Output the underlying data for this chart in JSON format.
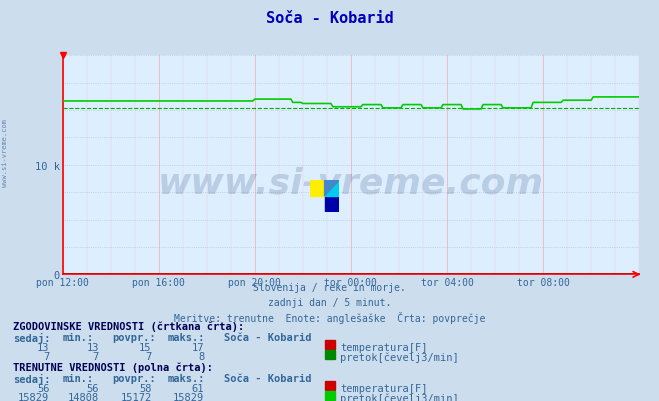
{
  "title": "Soča - Kobarid",
  "bg_color": "#ccdded",
  "plot_bg_color": "#ddeeff",
  "grid_color_v": "#ff9999",
  "grid_color_h": "#aaaacc",
  "axis_color": "#ff0000",
  "title_color": "#0000bb",
  "subtitle_lines": [
    "Slovenija / reke in morje.",
    "zadnji dan / 5 minut.",
    "Meritve: trenutne  Enote: anglešaške  Črta: povprečje"
  ],
  "xlabel_ticks": [
    "pon 12:00",
    "pon 16:00",
    "pon 20:00",
    "tor 00:00",
    "tor 04:00",
    "tor 08:00"
  ],
  "ylabel_ticks": [
    "0",
    "10 k"
  ],
  "ylim": [
    0,
    20000
  ],
  "xlim": [
    0,
    288
  ],
  "ytick_positions": [
    0,
    10000
  ],
  "xtick_positions": [
    0,
    48,
    96,
    144,
    192,
    240
  ],
  "watermark_text": "www.si-vreme.com",
  "watermark_color": "#1a3a6a",
  "watermark_alpha": 0.18,
  "flow_hist_color": "#00aa00",
  "flow_curr_color": "#00cc00",
  "temp_hist_color": "#cc0000",
  "temp_curr_color": "#cc0000",
  "table_text_color": "#336699",
  "table_bold_color": "#000055",
  "legend_items": [
    {
      "label": "ZGODOVINSKE VREDNOSTI (črtkana črta):"
    },
    {
      "cols": [
        "sedaj:",
        "min.:",
        "povpr.:",
        "maks.:",
        "Soča - Kobarid"
      ]
    },
    {
      "vals": [
        "13",
        "13",
        "15",
        "17"
      ],
      "name": "temperatura[F]",
      "color": "#cc0000"
    },
    {
      "vals": [
        "7",
        "7",
        "7",
        "8"
      ],
      "name": "pretok[čevelj3/min]",
      "color": "#008800"
    },
    {
      "label": "TRENUTNE VREDNOSTI (polna črta):"
    },
    {
      "cols": [
        "sedaj:",
        "min.:",
        "povpr.:",
        "maks.:",
        "Soča - Kobarid"
      ]
    },
    {
      "vals": [
        "56",
        "56",
        "58",
        "61"
      ],
      "name": "temperatura[F]",
      "color": "#cc0000"
    },
    {
      "vals": [
        "15829",
        "14808",
        "15172",
        "15829"
      ],
      "name": "pretok[čevelj3/min]",
      "color": "#00cc00"
    }
  ]
}
